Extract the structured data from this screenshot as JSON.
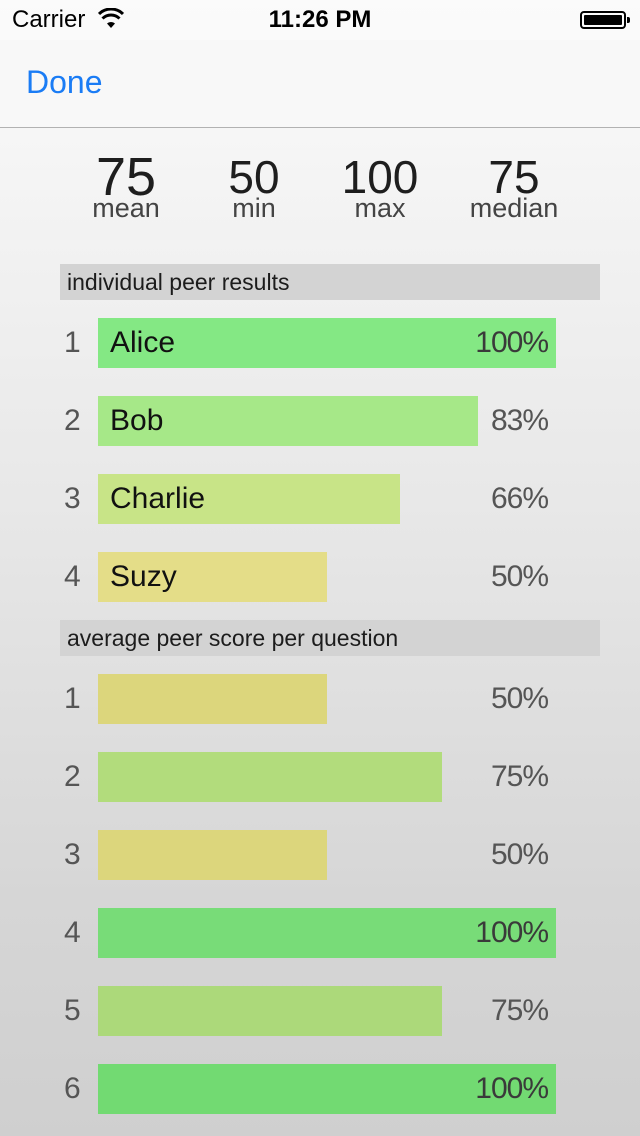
{
  "status_bar": {
    "carrier": "Carrier",
    "time": "11:26 PM",
    "wifi_icon": "wifi-icon",
    "battery_icon": "battery-icon"
  },
  "nav": {
    "done_label": "Done"
  },
  "stats": {
    "mean": {
      "value": "75",
      "label": "mean"
    },
    "min": {
      "value": "50",
      "label": "min"
    },
    "max": {
      "value": "100",
      "label": "max"
    },
    "median": {
      "value": "75",
      "label": "median"
    }
  },
  "sections": {
    "peer_results": "individual peer results",
    "question_scores": "average peer score per question"
  },
  "peer_results": [
    {
      "rank": "1",
      "name": "Alice",
      "percent": "100%",
      "value": 1.0,
      "color": "#84e884"
    },
    {
      "rank": "2",
      "name": "Bob",
      "percent": "83%",
      "value": 0.83,
      "color": "#a6e888"
    },
    {
      "rank": "3",
      "name": "Charlie",
      "percent": "66%",
      "value": 0.66,
      "color": "#c8e487"
    },
    {
      "rank": "4",
      "name": "Suzy",
      "percent": "50%",
      "value": 0.5,
      "color": "#e4dd88"
    }
  ],
  "question_scores": [
    {
      "number": "1",
      "percent": "50%",
      "value": 0.5,
      "color": "#dcd67c"
    },
    {
      "number": "2",
      "percent": "75%",
      "value": 0.75,
      "color": "#b2dc7c"
    },
    {
      "number": "3",
      "percent": "50%",
      "value": 0.5,
      "color": "#dcd67c"
    },
    {
      "number": "4",
      "percent": "100%",
      "value": 1.0,
      "color": "#78dc78"
    },
    {
      "number": "5",
      "percent": "75%",
      "value": 0.75,
      "color": "#acd97a"
    },
    {
      "number": "6",
      "percent": "100%",
      "value": 1.0,
      "color": "#72da72"
    }
  ]
}
